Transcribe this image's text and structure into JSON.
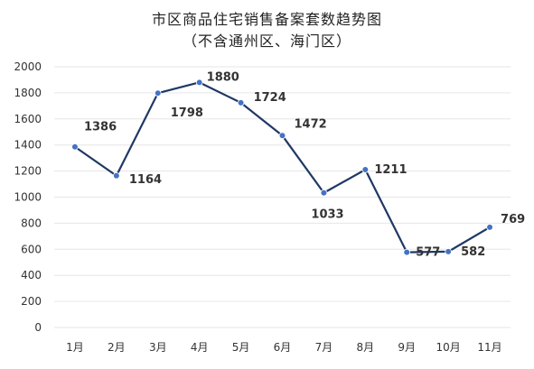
{
  "chart_data": {
    "type": "line",
    "title": "市区商品住宅销售备案套数趋势图",
    "subtitle": "（不含通州区、海门区）",
    "xlabel": "",
    "ylabel": "",
    "categories": [
      "1月",
      "2月",
      "3月",
      "4月",
      "5月",
      "6月",
      "7月",
      "8月",
      "9月",
      "10月",
      "11月"
    ],
    "series": [
      {
        "values": [
          1386,
          1164,
          1798,
          1880,
          1724,
          1472,
          1033,
          1211,
          577,
          582,
          769
        ]
      }
    ],
    "ylim": [
      0,
      2000
    ],
    "yticks": [
      0,
      200,
      400,
      600,
      800,
      1000,
      1200,
      1400,
      1600,
      1800,
      2000
    ],
    "grid": true,
    "legend": "none",
    "colors": {
      "line": "#1f3864",
      "marker": "#4472c4",
      "grid": "#e6e6e6",
      "text": "#333333"
    }
  }
}
